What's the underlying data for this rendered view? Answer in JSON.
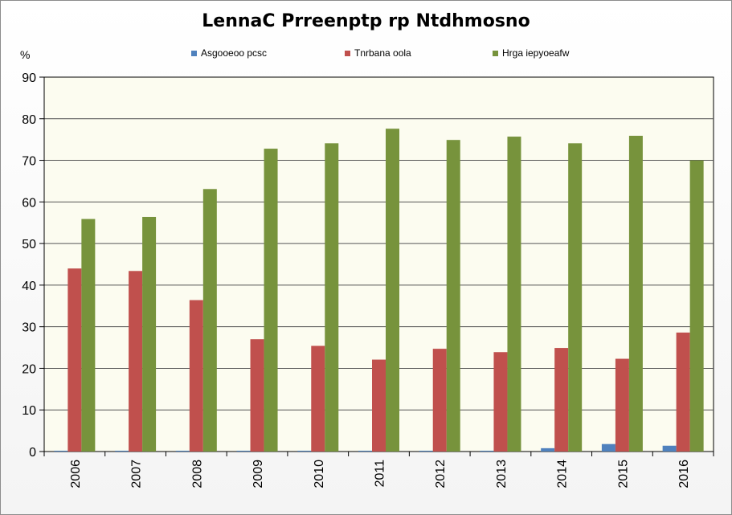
{
  "chart_data": {
    "type": "bar",
    "title": "LennaC Prreenptp rp Ntdhmosno",
    "xlabel": "",
    "ylabel": "%",
    "ylim": [
      0,
      90
    ],
    "yticks": [
      0,
      10,
      20,
      30,
      40,
      50,
      60,
      70,
      80,
      90
    ],
    "categories": [
      "2006",
      "2007",
      "2008",
      "2009",
      "2010",
      "2011",
      "2012",
      "2013",
      "2014",
      "2015",
      "2016"
    ],
    "series": [
      {
        "name": "Asgooeoo pcsc",
        "color": "#4f81bd",
        "values": [
          0.2,
          0.2,
          0.2,
          0.2,
          0.2,
          0.2,
          0.2,
          0.2,
          0.8,
          1.8,
          1.4
        ]
      },
      {
        "name": "Tnrbana oola",
        "color": "#c0504d",
        "values": [
          44,
          43.4,
          36.4,
          27,
          25.4,
          22.1,
          24.7,
          23.9,
          24.9,
          22.3,
          28.6
        ]
      },
      {
        "name": "Hrga iepyoeafw",
        "color": "#77933c",
        "values": [
          55.9,
          56.4,
          63.1,
          72.8,
          74.1,
          77.6,
          74.9,
          75.7,
          74.1,
          75.9,
          70
        ]
      }
    ],
    "grid": true,
    "legend": "top",
    "plot_background": "#fcfcf0"
  }
}
